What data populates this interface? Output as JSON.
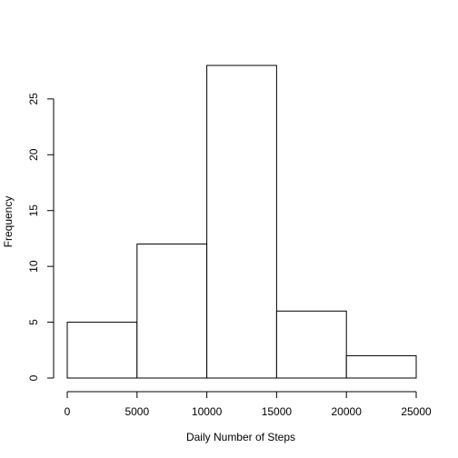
{
  "chart_data": {
    "type": "bar",
    "title": "",
    "xlabel": "Daily Number of Steps",
    "ylabel": "Frequency",
    "bins": [
      {
        "start": 0,
        "end": 5000,
        "count": 5
      },
      {
        "start": 5000,
        "end": 10000,
        "count": 12
      },
      {
        "start": 10000,
        "end": 15000,
        "count": 28
      },
      {
        "start": 15000,
        "end": 20000,
        "count": 6
      },
      {
        "start": 20000,
        "end": 25000,
        "count": 2
      }
    ],
    "x_ticks": [
      "0",
      "5000",
      "10000",
      "15000",
      "20000",
      "25000"
    ],
    "y_ticks": [
      "0",
      "5",
      "10",
      "15",
      "20",
      "25"
    ],
    "xlim": [
      0,
      25000
    ],
    "ylim": [
      0,
      28
    ],
    "grid": false,
    "bar_fill": "#ffffff",
    "bar_stroke": "#000000"
  }
}
